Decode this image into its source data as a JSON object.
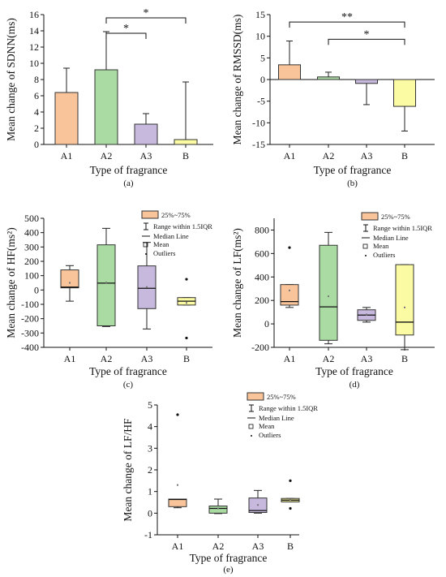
{
  "colors": {
    "A1": "#f9c49a",
    "A2": "#a9dba3",
    "A3": "#c7b8de",
    "B": "#fbfba3",
    "stroke": "#333333"
  },
  "legend": {
    "box_label": "25%~75%",
    "range_label": "Range within 1.5IQR",
    "median_label": "Median Line",
    "mean_label": "Mean",
    "outlier_label": "Outliers"
  },
  "chart_data": [
    {
      "id": "a",
      "panel_label": "(a)",
      "type": "bar",
      "categories": [
        "A1",
        "A2",
        "A3",
        "B"
      ],
      "values": [
        6.4,
        9.2,
        2.5,
        0.6
      ],
      "error_upper": [
        9.4,
        13.9,
        3.8,
        7.7
      ],
      "ylim": [
        0,
        16
      ],
      "yticks": [
        0,
        2,
        4,
        6,
        8,
        10,
        12,
        14,
        16
      ],
      "xlabel": "Type of fragrance",
      "ylabel": "Mean change of SDNN(ms)",
      "significance": [
        {
          "from": 1,
          "to": 3,
          "label": "*",
          "level": 15.6
        },
        {
          "from": 1,
          "to": 2,
          "label": "*",
          "level": 13.7
        }
      ]
    },
    {
      "id": "b",
      "panel_label": "(b)",
      "type": "bar",
      "categories": [
        "A1",
        "A2",
        "A3",
        "B"
      ],
      "values": [
        3.4,
        0.6,
        -0.9,
        -6.2
      ],
      "error_end": [
        8.9,
        1.7,
        -5.8,
        -11.9
      ],
      "ylim": [
        -15,
        15
      ],
      "yticks": [
        -15,
        -10,
        -5,
        0,
        5,
        10,
        15
      ],
      "xlabel": "Type of fragrance",
      "ylabel": "Mean change of RMSSD(ms)",
      "significance": [
        {
          "from": 0,
          "to": 3,
          "label": "**",
          "level": 13.3
        },
        {
          "from": 1,
          "to": 3,
          "label": "*",
          "level": 9.3
        }
      ]
    },
    {
      "id": "c",
      "panel_label": "(c)",
      "type": "box",
      "categories": [
        "A1",
        "A2",
        "A3",
        "B"
      ],
      "boxes": [
        {
          "q1": 15,
          "q3": 140,
          "median": 20,
          "whisker_low": -78,
          "whisker_high": 170,
          "mean": 50,
          "outliers": []
        },
        {
          "q1": -250,
          "q3": 315,
          "median": 48,
          "whisker_low": -255,
          "whisker_high": 430,
          "mean": 52,
          "outliers": []
        },
        {
          "q1": -130,
          "q3": 168,
          "median": 12,
          "whisker_low": -272,
          "whisker_high": 332,
          "mean": 20,
          "outliers": []
        },
        {
          "q1": -105,
          "q3": -53,
          "median": -78,
          "whisker_low": -105,
          "whisker_high": -53,
          "mean": -90,
          "outliers": [
            75,
            -335
          ]
        }
      ],
      "ylim": [
        -400,
        500
      ],
      "yticks": [
        -400,
        -300,
        -200,
        -100,
        0,
        100,
        200,
        300,
        400,
        500
      ],
      "xlabel": "Type of fragrance",
      "ylabel": "Mean change of HF(ms²)"
    },
    {
      "id": "d",
      "panel_label": "(d)",
      "type": "box",
      "categories": [
        "A1",
        "A2",
        "A3",
        "B"
      ],
      "boxes": [
        {
          "q1": 160,
          "q3": 335,
          "median": 190,
          "whisker_low": 140,
          "whisker_high": 335,
          "mean": 285,
          "outliers": [
            650
          ]
        },
        {
          "q1": -140,
          "q3": 670,
          "median": 145,
          "whisker_low": -170,
          "whisker_high": 780,
          "mean": 235,
          "outliers": []
        },
        {
          "q1": 30,
          "q3": 120,
          "median": 75,
          "whisker_low": 15,
          "whisker_high": 140,
          "mean": 80,
          "outliers": []
        },
        {
          "q1": -95,
          "q3": 505,
          "median": 15,
          "whisker_low": -220,
          "whisker_high": 505,
          "mean": 140,
          "outliers": []
        }
      ],
      "ylim": [
        -200,
        900
      ],
      "yticks": [
        -200,
        0,
        200,
        400,
        600,
        800
      ],
      "xlabel": "Type of fragrance",
      "ylabel": "Mean change of LF(ms²)"
    },
    {
      "id": "e",
      "panel_label": "(e)",
      "type": "box",
      "categories": [
        "A1",
        "A2",
        "A3",
        "B"
      ],
      "boxes": [
        {
          "q1": 0.3,
          "q3": 0.65,
          "median": 0.63,
          "whisker_low": 0.25,
          "whisker_high": 0.65,
          "mean": 1.3,
          "outliers": [
            4.55
          ]
        },
        {
          "q1": 0.0,
          "q3": 0.33,
          "median": 0.22,
          "whisker_low": -0.02,
          "whisker_high": 0.65,
          "mean": 0.22,
          "outliers": []
        },
        {
          "q1": 0.03,
          "q3": 0.7,
          "median": 0.12,
          "whisker_low": 0.0,
          "whisker_high": 1.05,
          "mean": 0.38,
          "outliers": []
        },
        {
          "q1": 0.52,
          "q3": 0.68,
          "median": 0.6,
          "whisker_low": 0.52,
          "whisker_high": 0.68,
          "mean": 0.62,
          "outliers": [
            1.5,
            0.22
          ]
        }
      ],
      "ylim": [
        -1,
        5
      ],
      "yticks": [
        -1,
        0,
        1,
        2,
        3,
        4,
        5
      ],
      "xlabel": "Type of fragrance",
      "ylabel": "Mean change of LF/HF"
    }
  ]
}
